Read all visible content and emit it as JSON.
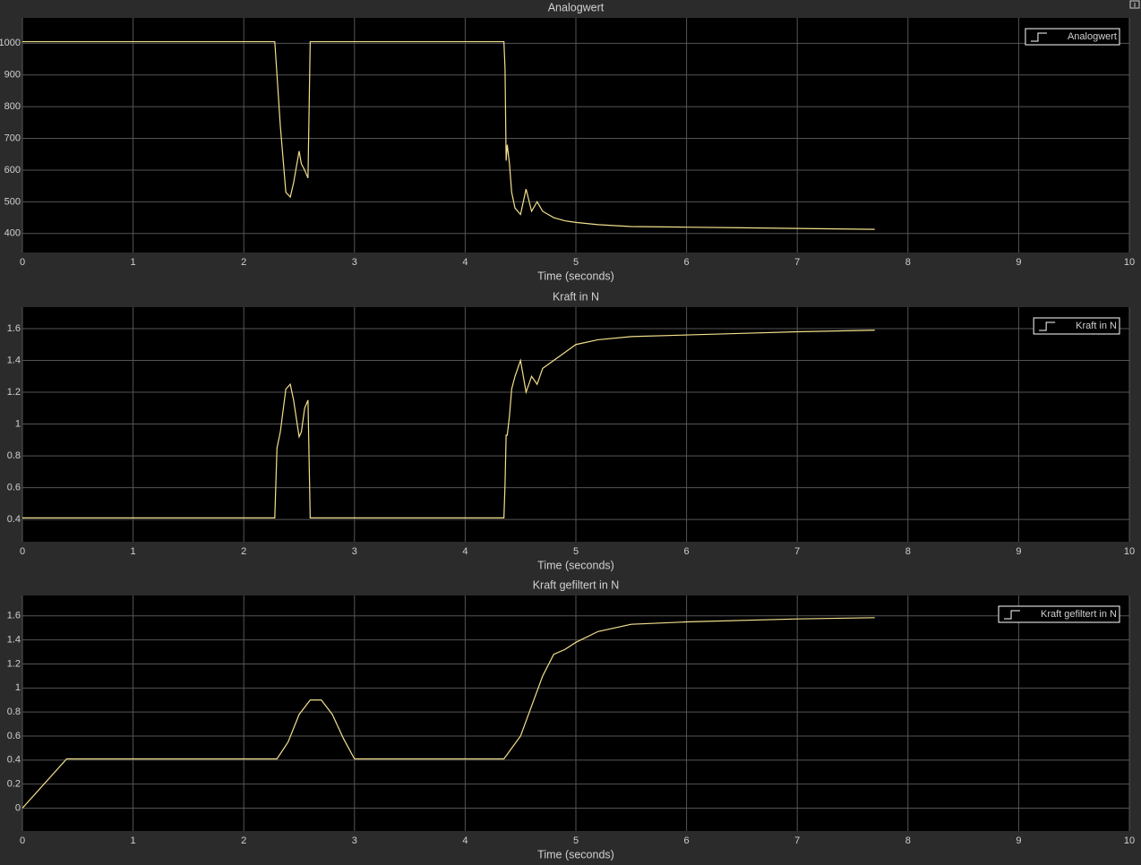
{
  "chart_data": [
    {
      "type": "line",
      "title": "Analogwert",
      "xlabel": "Time (seconds)",
      "x": [
        0,
        2.28,
        2.3,
        2.33,
        2.38,
        2.42,
        2.45,
        2.5,
        2.52,
        2.55,
        2.58,
        2.6,
        2.61,
        4.35,
        4.36,
        4.37,
        4.38,
        4.4,
        4.42,
        4.45,
        4.5,
        4.55,
        4.6,
        4.65,
        4.7,
        4.8,
        4.9,
        5.0,
        5.2,
        5.5,
        6.0,
        6.5,
        7.0,
        7.7
      ],
      "series": [
        {
          "name": "Analogwert",
          "color": "#f3e08c",
          "values": [
            1005,
            1005,
            900,
            740,
            530,
            515,
            560,
            660,
            620,
            600,
            575,
            1005,
            1005,
            1005,
            920,
            630,
            680,
            620,
            530,
            480,
            460,
            540,
            470,
            500,
            470,
            450,
            440,
            435,
            428,
            422,
            420,
            418,
            416,
            413
          ]
        }
      ],
      "xlim": [
        0,
        10
      ],
      "xticks": [
        0,
        1,
        2,
        3,
        4,
        5,
        6,
        7,
        8,
        9,
        10
      ],
      "ylim": [
        340,
        1080
      ],
      "yticks": [
        400,
        500,
        600,
        700,
        800,
        900,
        1000
      ],
      "grid": true,
      "legend": "upper right"
    },
    {
      "type": "line",
      "title": "Kraft in N",
      "xlabel": "Time (seconds)",
      "x": [
        0,
        2.28,
        2.3,
        2.33,
        2.38,
        2.42,
        2.45,
        2.5,
        2.52,
        2.55,
        2.58,
        2.6,
        2.61,
        4.35,
        4.36,
        4.37,
        4.38,
        4.4,
        4.42,
        4.45,
        4.5,
        4.55,
        4.6,
        4.65,
        4.7,
        4.8,
        4.9,
        5.0,
        5.2,
        5.5,
        6.0,
        6.5,
        7.0,
        7.7
      ],
      "series": [
        {
          "name": "Kraft in N",
          "color": "#f3e08c",
          "values": [
            0.41,
            0.41,
            0.85,
            0.95,
            1.22,
            1.25,
            1.15,
            0.92,
            0.95,
            1.1,
            1.15,
            0.41,
            0.41,
            0.41,
            0.62,
            0.93,
            0.93,
            1.05,
            1.22,
            1.3,
            1.4,
            1.2,
            1.3,
            1.25,
            1.35,
            1.4,
            1.45,
            1.5,
            1.53,
            1.55,
            1.56,
            1.57,
            1.58,
            1.59
          ]
        }
      ],
      "xlim": [
        0,
        10
      ],
      "xticks": [
        0,
        1,
        2,
        3,
        4,
        5,
        6,
        7,
        8,
        9,
        10
      ],
      "ylim": [
        0.26,
        1.735
      ],
      "yticks": [
        0.4,
        0.6,
        0.8,
        1,
        1.2,
        1.4,
        1.6
      ],
      "grid": true,
      "legend": "upper right"
    },
    {
      "type": "line",
      "title": "Kraft gefiltert in N",
      "xlabel": "Time (seconds)",
      "x": [
        0,
        0.4,
        2.3,
        2.4,
        2.5,
        2.6,
        2.7,
        2.8,
        2.9,
        3.0,
        4.35,
        4.5,
        4.6,
        4.7,
        4.8,
        4.9,
        5.0,
        5.2,
        5.5,
        6.0,
        7.0,
        7.7
      ],
      "series": [
        {
          "name": "Kraft gefiltert in N",
          "color": "#f3e08c",
          "values": [
            0,
            0.41,
            0.41,
            0.55,
            0.78,
            0.9,
            0.9,
            0.78,
            0.58,
            0.41,
            0.41,
            0.6,
            0.85,
            1.1,
            1.28,
            1.32,
            1.38,
            1.47,
            1.53,
            1.55,
            1.575,
            1.585
          ]
        }
      ],
      "xlim": [
        0,
        10
      ],
      "xticks": [
        0,
        1,
        2,
        3,
        4,
        5,
        6,
        7,
        8,
        9,
        10
      ],
      "ylim": [
        -0.19,
        1.77
      ],
      "yticks": [
        0,
        0.2,
        0.4,
        0.6,
        0.8,
        1,
        1.2,
        1.4,
        1.6
      ],
      "grid": true,
      "legend": "upper right"
    }
  ]
}
